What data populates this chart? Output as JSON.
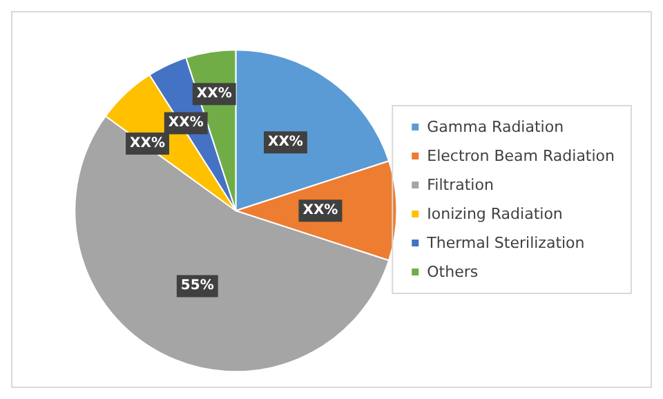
{
  "chart_data": {
    "type": "pie",
    "categories": [
      "Gamma Radiation",
      "Electron Beam Radiation",
      "Filtration",
      "Ionizing Radiation",
      "Thermal Sterilization",
      "Others"
    ],
    "values": [
      20,
      10,
      55,
      6,
      4,
      5
    ],
    "colors": [
      "#5b9bd5",
      "#ed7d31",
      "#a5a5a5",
      "#ffc000",
      "#4472c4",
      "#70ad47"
    ],
    "value_labels": [
      "XX%",
      "XX%",
      "55%",
      "XX%",
      "XX%",
      "XX%"
    ],
    "legend": "right"
  }
}
